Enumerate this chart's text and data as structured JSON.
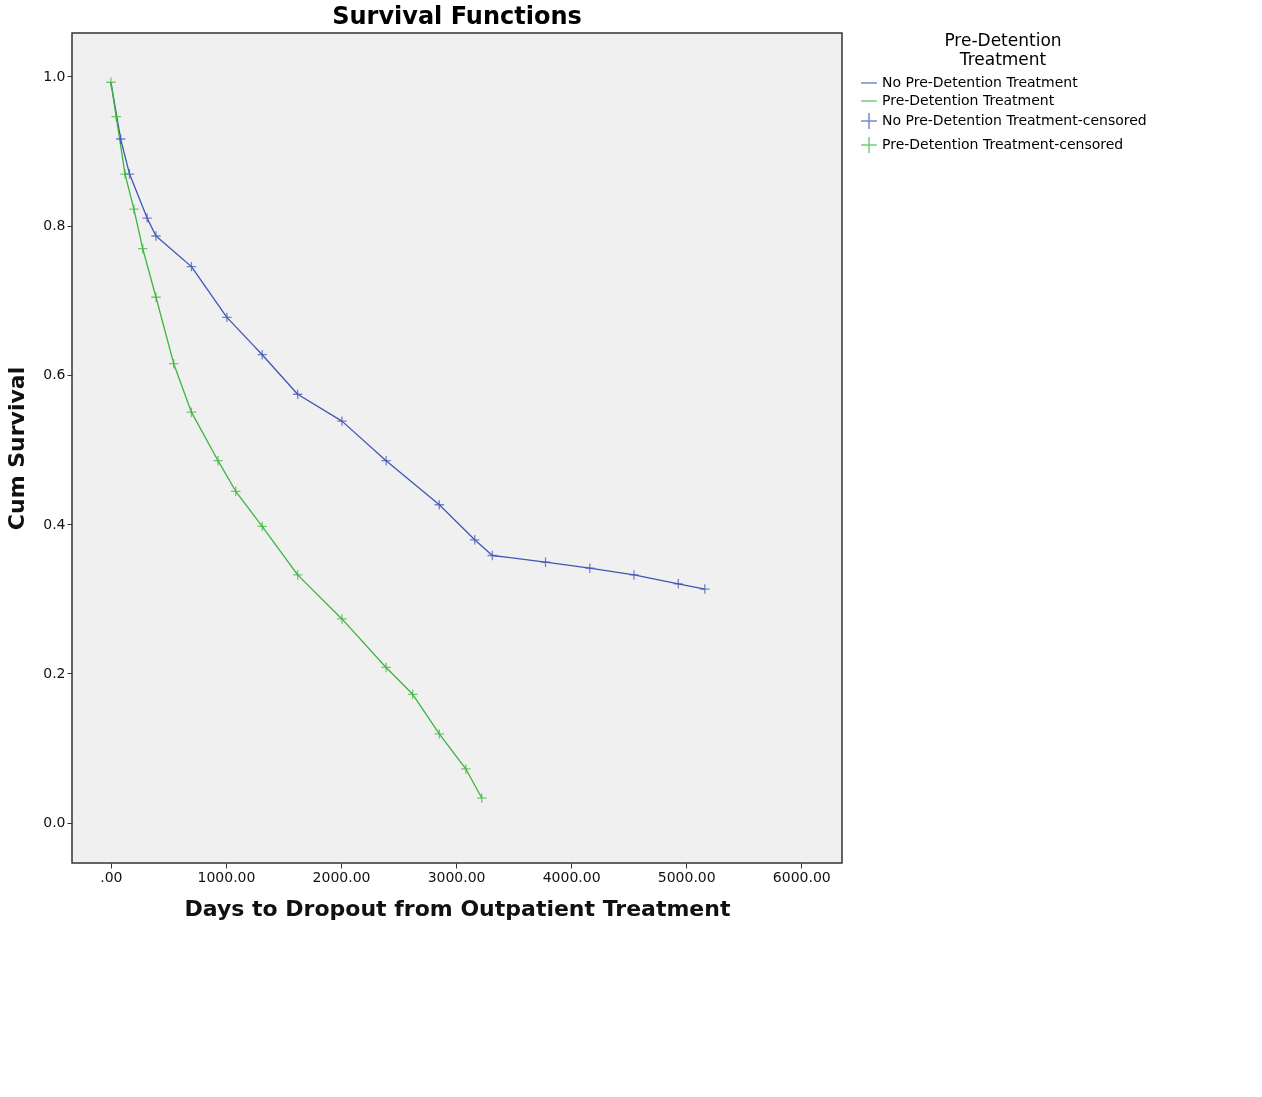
{
  "chart_data": {
    "type": "line",
    "title": "Survival Functions",
    "xlabel": "Days to Dropout from Outpatient Treatment",
    "ylabel": "Cum Survival",
    "legend_title": "Pre-Detention Treatment",
    "legend": "right",
    "grid": false,
    "xlim": [
      -338,
      6354
    ],
    "ylim": [
      -0.054,
      1.058
    ],
    "xticks": [
      {
        "value": 0,
        "label": ".00"
      },
      {
        "value": 1000,
        "label": "1000.00"
      },
      {
        "value": 2000,
        "label": "2000.00"
      },
      {
        "value": 3000,
        "label": "3000.00"
      },
      {
        "value": 4000,
        "label": "4000.00"
      },
      {
        "value": 5000,
        "label": "5000.00"
      },
      {
        "value": 6000,
        "label": "6000.00"
      }
    ],
    "yticks": [
      {
        "value": 0,
        "label": "0.0"
      },
      {
        "value": 0.2,
        "label": "0.2"
      },
      {
        "value": 0.4,
        "label": "0.4"
      },
      {
        "value": 0.6,
        "label": "0.6"
      },
      {
        "value": 0.8,
        "label": "0.8"
      },
      {
        "value": 1.0,
        "label": "1.0"
      }
    ],
    "series": [
      {
        "name": "No Pre-Detention Treatment",
        "type": "line",
        "color": "#3f56b5",
        "line_style": "solid",
        "x": [
          0,
          85,
          162,
          315,
          392,
          700,
          1008,
          1315,
          1623,
          2008,
          2392,
          2854,
          3162,
          3315,
          3777,
          4162,
          4546,
          4931,
          5162
        ],
        "values": [
          0.992,
          0.916,
          0.869,
          0.81,
          0.786,
          0.745,
          0.677,
          0.627,
          0.574,
          0.538,
          0.485,
          0.426,
          0.379,
          0.358,
          0.349,
          0.341,
          0.332,
          0.32,
          0.313
        ]
      },
      {
        "name": "Pre-Detention Treatment",
        "type": "line",
        "color": "#3cb53c",
        "line_style": "solid",
        "x": [
          0,
          46,
          123,
          200,
          277,
          392,
          546,
          700,
          931,
          1085,
          1315,
          1623,
          2008,
          2392,
          2623,
          2854,
          3085,
          3223
        ],
        "values": [
          0.992,
          0.946,
          0.869,
          0.822,
          0.769,
          0.704,
          0.615,
          0.55,
          0.485,
          0.444,
          0.397,
          0.332,
          0.273,
          0.208,
          0.172,
          0.119,
          0.072,
          0.033
        ]
      },
      {
        "name": "No Pre-Detention Treatment-censored",
        "type": "scatter",
        "marker": "cross",
        "color": "#3f56b5",
        "x": [
          85,
          162,
          315,
          392,
          700,
          1008,
          1315,
          1623,
          2008,
          2392,
          2854,
          3162,
          3315,
          3777,
          4162,
          4546,
          4931,
          5162
        ],
        "values": [
          0.916,
          0.869,
          0.81,
          0.786,
          0.745,
          0.677,
          0.627,
          0.574,
          0.538,
          0.485,
          0.426,
          0.379,
          0.358,
          0.349,
          0.341,
          0.332,
          0.32,
          0.313
        ]
      },
      {
        "name": "Pre-Detention Treatment-censored",
        "type": "scatter",
        "marker": "cross",
        "color": "#3cb53c",
        "x": [
          0,
          46,
          123,
          200,
          277,
          392,
          546,
          700,
          931,
          1085,
          1315,
          1623,
          2008,
          2392,
          2623,
          2854,
          3085,
          3223
        ],
        "values": [
          0.992,
          0.946,
          0.869,
          0.822,
          0.769,
          0.704,
          0.615,
          0.55,
          0.485,
          0.444,
          0.397,
          0.332,
          0.273,
          0.208,
          0.172,
          0.119,
          0.072,
          0.033
        ]
      }
    ]
  }
}
